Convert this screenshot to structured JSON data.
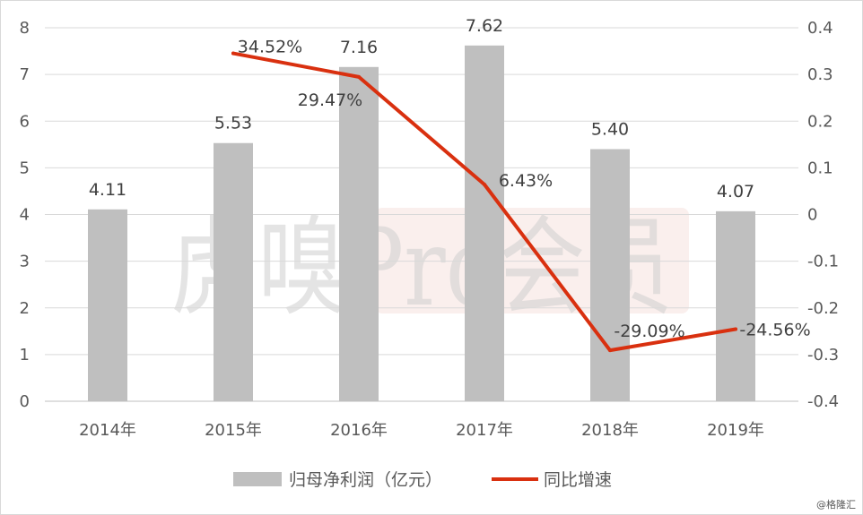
{
  "watermark": {
    "text": "虎嗅Pro会员"
  },
  "credit": "@格隆汇",
  "chart_data": {
    "type": "bar",
    "categories": [
      "2014年",
      "2015年",
      "2016年",
      "2017年",
      "2018年",
      "2019年"
    ],
    "title": "",
    "xlabel": "",
    "ylabel": "",
    "y_left": {
      "min": 0,
      "max": 8,
      "ticks": [
        "0",
        "1",
        "2",
        "3",
        "4",
        "5",
        "6",
        "7",
        "8"
      ]
    },
    "y_right": {
      "min": -0.4,
      "max": 0.4,
      "ticks": [
        "-0.4",
        "-0.3",
        "-0.2",
        "-0.1",
        "0",
        "0.1",
        "0.2",
        "0.3",
        "0.4"
      ]
    },
    "grid": true,
    "legend_position": "bottom",
    "series": [
      {
        "name": "归母净利润（亿元）",
        "type": "bar",
        "axis": "left",
        "color": "#bfbfbf",
        "values": [
          4.11,
          5.53,
          7.16,
          7.62,
          5.4,
          4.07
        ],
        "labels": [
          "4.11",
          "5.53",
          "7.16",
          "7.62",
          "5.40",
          "4.07"
        ]
      },
      {
        "name": "同比增速",
        "type": "line",
        "axis": "right",
        "color": "#d9300f",
        "values": [
          null,
          0.3452,
          0.2947,
          0.0643,
          -0.2909,
          -0.2456
        ],
        "labels": [
          "",
          "34.52%",
          "29.47%",
          "6.43%",
          "-29.09%",
          "-24.56%"
        ]
      }
    ]
  }
}
